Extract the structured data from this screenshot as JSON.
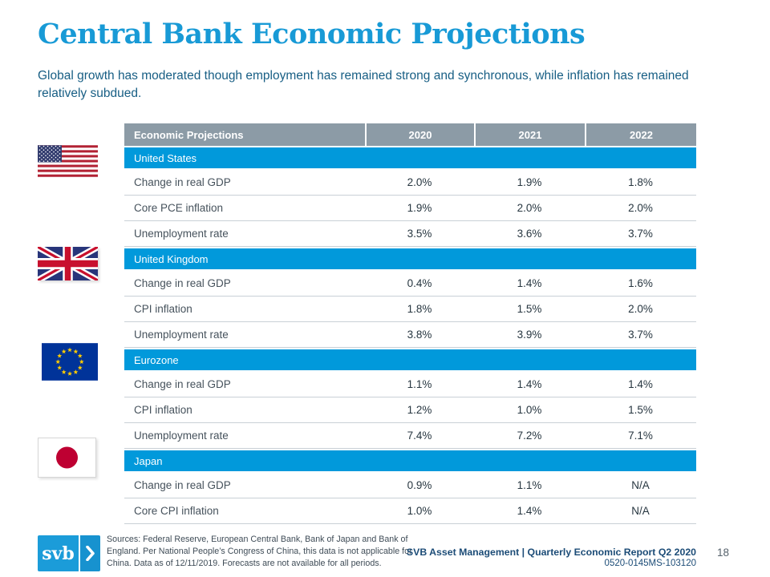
{
  "slide": {
    "title": "Central Bank Economic Projections",
    "subtitle": "Global growth has moderated though employment has remained strong and synchronous, while inflation has remained relatively subdued."
  },
  "colors": {
    "accent_blue": "#0199DB",
    "header_gray": "#8C9BA6",
    "title_blue": "#189AD6",
    "footer_navy": "#1C4C77",
    "us_flag_red": "#B22234",
    "us_flag_canton": "#323C6F",
    "uk_flag_blue": "#28357A",
    "uk_flag_red": "#C8102E",
    "eu_flag_blue": "#003399",
    "eu_flag_star": "#FFCC00",
    "japan_flag_red": "#BE0032"
  },
  "table": {
    "header": {
      "label": "Economic Projections",
      "columns": [
        "2020",
        "2021",
        "2022"
      ]
    },
    "sections": [
      {
        "name": "United States",
        "flag": "us-flag",
        "rows": [
          {
            "label": "Change in real GDP",
            "values": [
              "2.0%",
              "1.9%",
              "1.8%"
            ]
          },
          {
            "label": "Core PCE inflation",
            "values": [
              "1.9%",
              "2.0%",
              "2.0%"
            ]
          },
          {
            "label": "Unemployment rate",
            "values": [
              "3.5%",
              "3.6%",
              "3.7%"
            ]
          }
        ]
      },
      {
        "name": "United Kingdom",
        "flag": "uk-flag",
        "rows": [
          {
            "label": "Change in real GDP",
            "values": [
              "0.4%",
              "1.4%",
              "1.6%"
            ]
          },
          {
            "label": "CPI inflation",
            "values": [
              "1.8%",
              "1.5%",
              "2.0%"
            ]
          },
          {
            "label": "Unemployment rate",
            "values": [
              "3.8%",
              "3.9%",
              "3.7%"
            ]
          }
        ]
      },
      {
        "name": "Eurozone",
        "flag": "eu-flag",
        "rows": [
          {
            "label": "Change in real GDP",
            "values": [
              "1.1%",
              "1.4%",
              "1.4%"
            ]
          },
          {
            "label": "CPI inflation",
            "values": [
              "1.2%",
              "1.0%",
              "1.5%"
            ]
          },
          {
            "label": "Unemployment rate",
            "values": [
              "7.4%",
              "7.2%",
              "7.1%"
            ]
          }
        ]
      },
      {
        "name": "Japan",
        "flag": "japan-flag",
        "rows": [
          {
            "label": "Change in real GDP",
            "values": [
              "0.9%",
              "1.1%",
              "N/A"
            ]
          },
          {
            "label": "Core CPI inflation",
            "values": [
              "1.0%",
              "1.4%",
              "N/A"
            ]
          }
        ]
      }
    ]
  },
  "footer": {
    "logo_text": "svb",
    "sources_lines": [
      "Sources: Federal Reserve, European Central Bank, Bank of Japan and Bank of",
      "England. Per National People’s Congress of China, this data is not applicable for",
      "China. Data as of 12/11/2019. Forecasts are not available for all periods."
    ],
    "report_title": "SVB Asset Management | Quarterly Economic Report Q2 2020",
    "doc_code": "0520-0145MS-103120",
    "page_number": "18"
  }
}
